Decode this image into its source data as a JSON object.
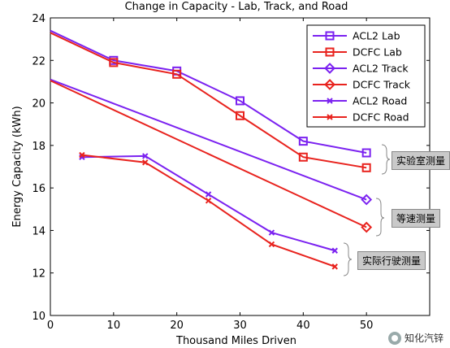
{
  "chart_data": {
    "type": "line",
    "title": "Change in Capacity - Lab, Track, and Road",
    "xlabel": "Thousand Miles Driven",
    "ylabel": "Energy Capacity (kWh)",
    "xlim": [
      0,
      60
    ],
    "ylim": [
      10,
      24
    ],
    "xticks": [
      0,
      10,
      20,
      30,
      40,
      50
    ],
    "yticks": [
      10,
      12,
      14,
      16,
      18,
      20,
      22,
      24
    ],
    "grid": false,
    "legend_position": "top-right",
    "series": [
      {
        "name": "ACL2 Lab",
        "color": "#7b22f0",
        "marker": "square",
        "x": [
          0,
          10,
          20,
          30,
          40,
          50
        ],
        "y": [
          23.4,
          22.0,
          21.5,
          20.1,
          18.2,
          17.65
        ],
        "marked": [
          false,
          true,
          true,
          true,
          true,
          true
        ]
      },
      {
        "name": "DCFC Lab",
        "color": "#e8231e",
        "marker": "square",
        "x": [
          0,
          10,
          20,
          30,
          40,
          50
        ],
        "y": [
          23.3,
          21.9,
          21.35,
          19.4,
          17.45,
          16.95
        ],
        "marked": [
          false,
          true,
          true,
          true,
          true,
          true
        ]
      },
      {
        "name": "ACL2 Track",
        "color": "#7b22f0",
        "marker": "diamond",
        "x": [
          0,
          50
        ],
        "y": [
          21.1,
          15.45
        ],
        "marked": [
          false,
          true
        ]
      },
      {
        "name": "DCFC Track",
        "color": "#e8231e",
        "marker": "diamond",
        "x": [
          0,
          50
        ],
        "y": [
          21.05,
          14.15
        ],
        "marked": [
          false,
          true
        ]
      },
      {
        "name": "ACL2 Road",
        "color": "#7b22f0",
        "marker": "x",
        "x": [
          5,
          15,
          25,
          35,
          45
        ],
        "y": [
          17.45,
          17.5,
          15.7,
          13.9,
          13.05
        ],
        "marked": [
          true,
          true,
          true,
          true,
          true
        ]
      },
      {
        "name": "DCFC Road",
        "color": "#e8231e",
        "marker": "x",
        "x": [
          5,
          15,
          25,
          35,
          45
        ],
        "y": [
          17.55,
          17.2,
          15.4,
          13.35,
          12.3
        ],
        "marked": [
          true,
          true,
          true,
          true,
          true
        ]
      }
    ],
    "annotations": [
      {
        "text": "实验室测量"
      },
      {
        "text": "等速测量"
      },
      {
        "text": "实际行驶测量"
      }
    ]
  },
  "watermark": {
    "text": "知化汽锌",
    "icon": "wechat-icon"
  }
}
